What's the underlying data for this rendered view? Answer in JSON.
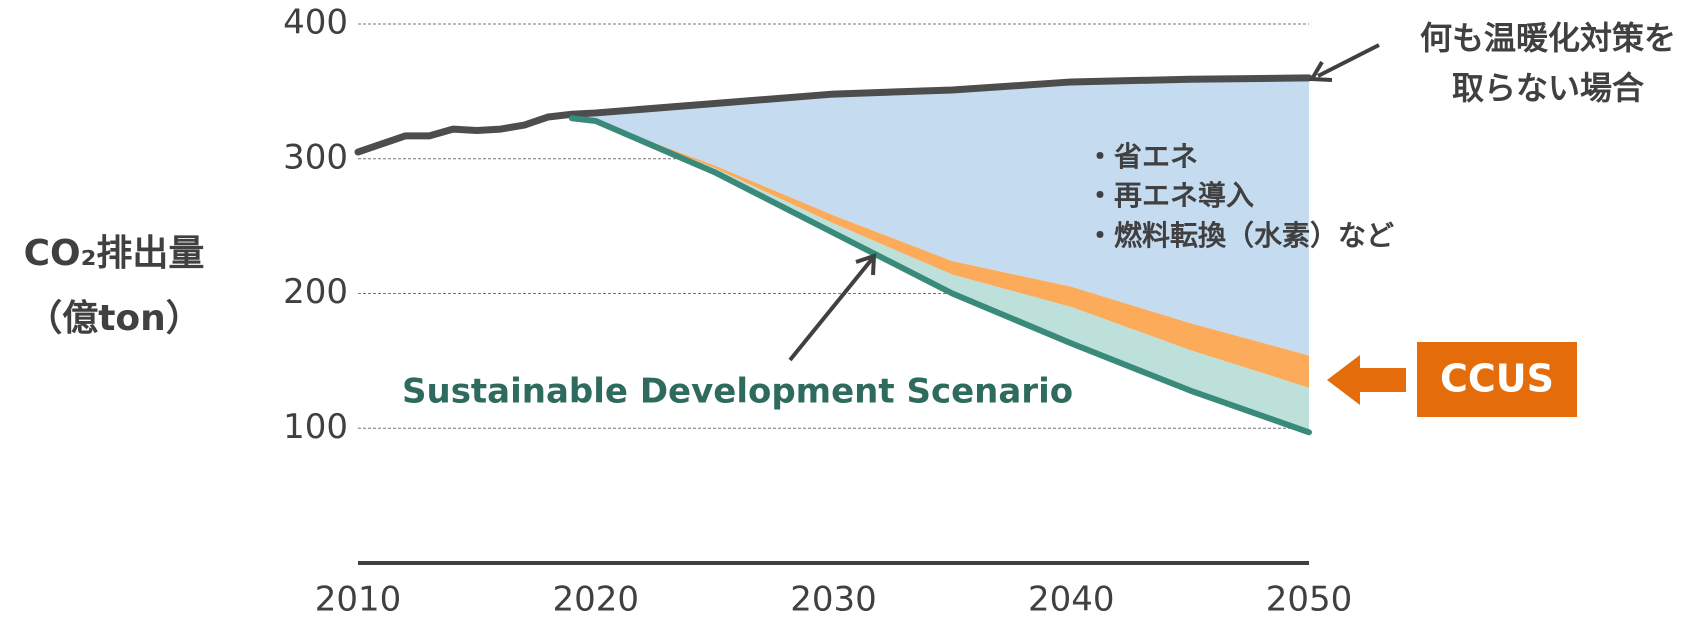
{
  "chart_data": {
    "type": "area",
    "y_label": [
      "CO₂排出量",
      "（億ton）"
    ],
    "x": [
      2010,
      2012,
      2013,
      2014,
      2015,
      2016,
      2017,
      2018,
      2019,
      2020,
      2025,
      2030,
      2035,
      2040,
      2045,
      2050
    ],
    "series": [
      {
        "color": "#4d4d4d",
        "line": true,
        "values": [
          305,
          317,
          317,
          322,
          321,
          322,
          325,
          331,
          333,
          334,
          341,
          348,
          351,
          357,
          359,
          360
        ]
      },
      {
        "color": "#fbab5a",
        "line": false,
        "values": [
          null,
          null,
          null,
          null,
          null,
          null,
          null,
          null,
          330,
          328,
          295,
          258,
          224,
          205,
          178,
          154
        ]
      },
      {
        "color": "#bde0da",
        "line": false,
        "values": [
          null,
          null,
          null,
          null,
          null,
          null,
          null,
          null,
          330,
          328,
          293,
          252,
          214,
          190,
          158,
          130
        ]
      },
      {
        "color": "#3a8a7c",
        "line": true,
        "values": [
          null,
          null,
          null,
          null,
          null,
          null,
          null,
          null,
          330,
          328,
          290,
          245,
          200,
          163,
          128,
          97
        ]
      }
    ],
    "band_colors": [
      "#c5dcf0",
      "#fbab5a",
      "#bde0da"
    ],
    "xlim": [
      2010,
      2050
    ],
    "xticks": [
      2010,
      2020,
      2030,
      2040,
      2050
    ],
    "ylim": [
      0,
      400
    ],
    "yticks": [
      100,
      200,
      300,
      400
    ],
    "grid": true,
    "annotations": {
      "baseline": [
        "何も温暖化対策を",
        "取らない場合"
      ],
      "measures": [
        "・省エネ",
        "・再エネ導入",
        "・燃料転換（水素）など"
      ],
      "sds": "Sustainable Development Scenario",
      "ccus": "CCUS"
    }
  }
}
